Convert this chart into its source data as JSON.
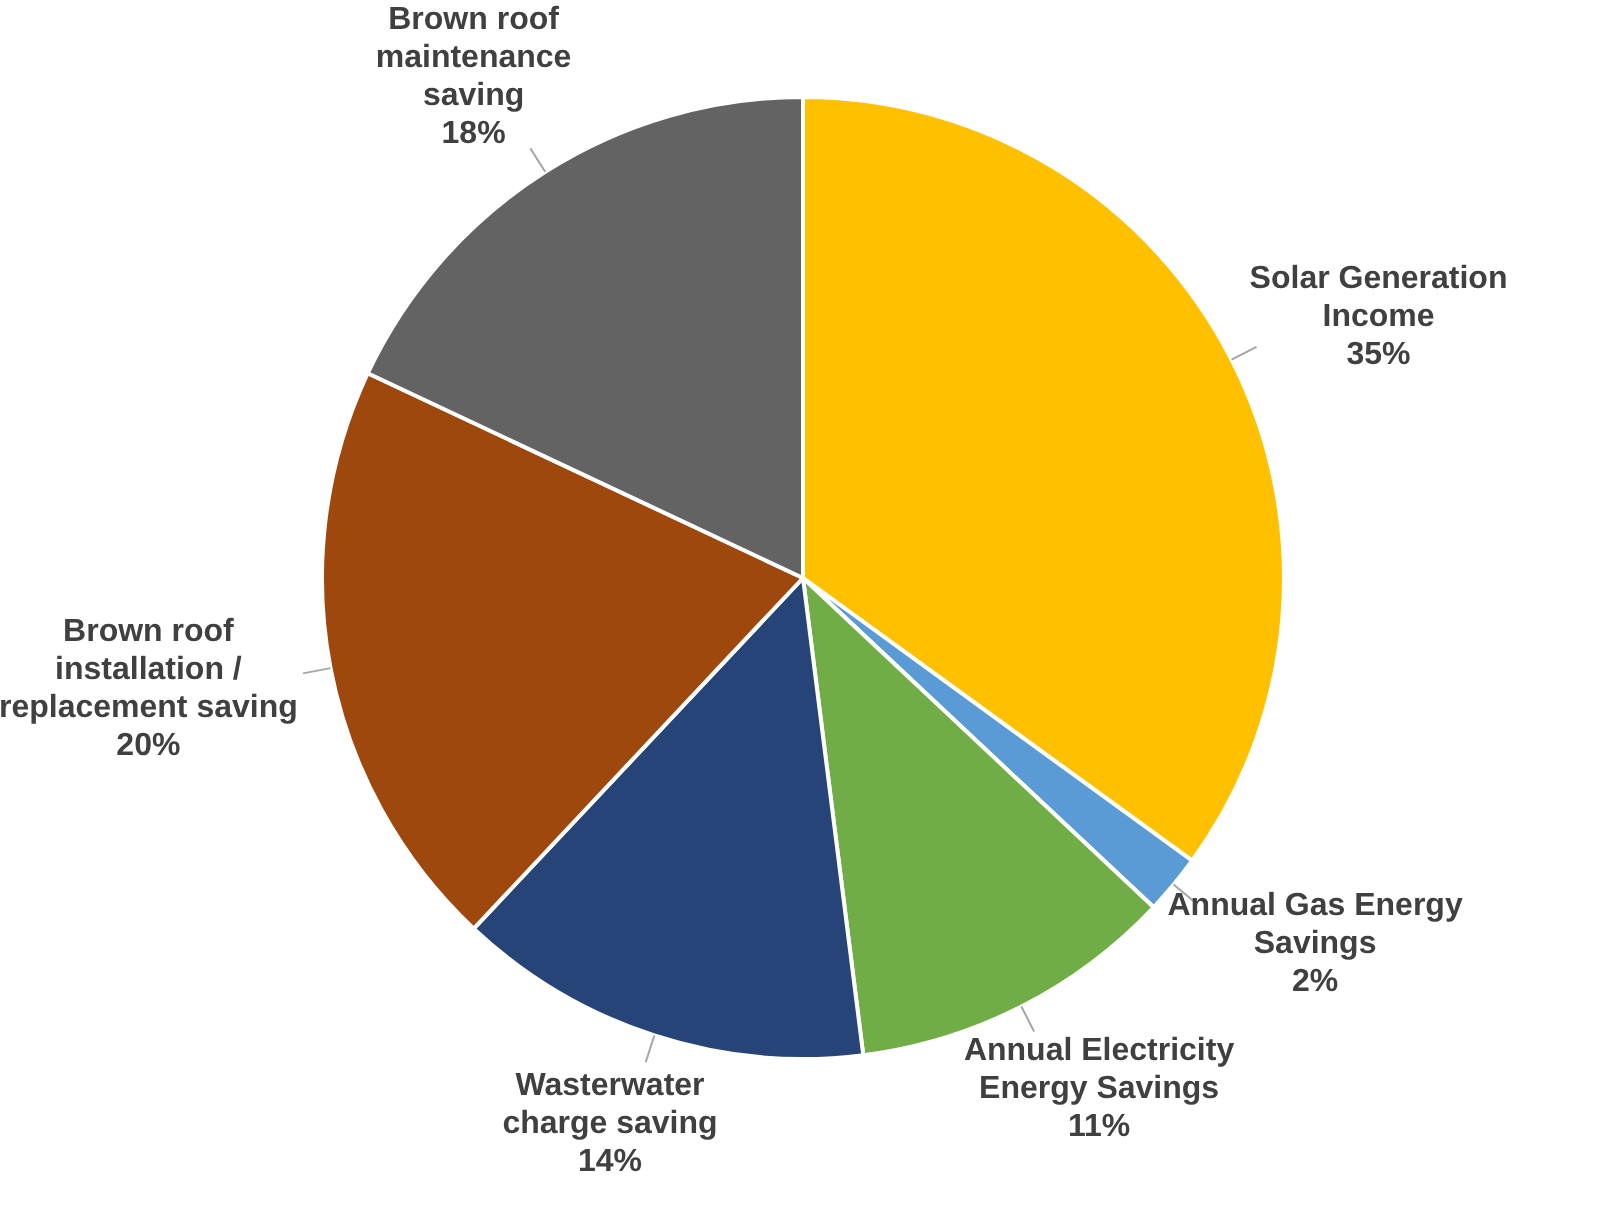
{
  "chart_data": {
    "type": "pie",
    "categories": [
      "Solar Generation Income",
      "Annual Gas Energy Savings",
      "Annual Electricity Energy Savings",
      "Wasterwater charge saving",
      "Brown roof installation / replacement saving",
      "Brown roof maintenance saving"
    ],
    "values": [
      35,
      2,
      11,
      14,
      20,
      18
    ],
    "value_labels": [
      "35%",
      "2%",
      "11%",
      "14%",
      "20%",
      "18%"
    ],
    "colors": [
      "#ffc000",
      "#5b9bd5",
      "#70ad47",
      "#264478",
      "#9e480e",
      "#636363"
    ],
    "legend": false
  }
}
